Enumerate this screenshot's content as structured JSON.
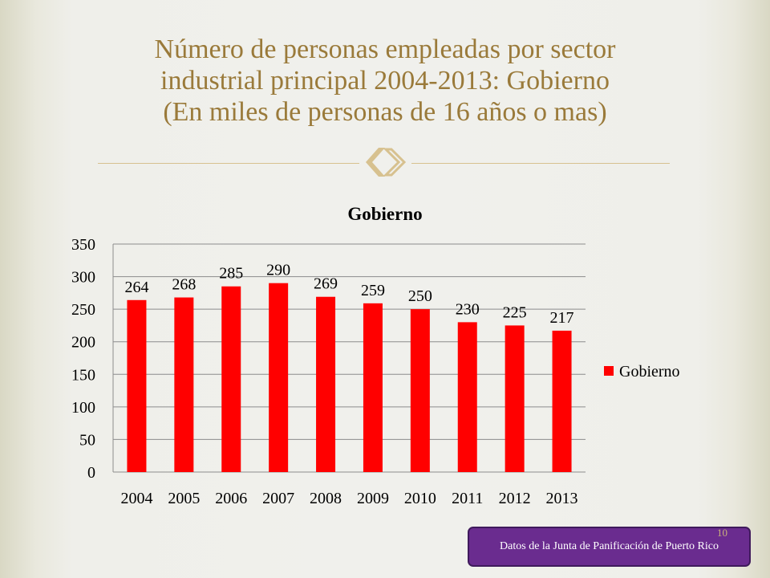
{
  "title_lines": [
    "Número de personas empleadas por sector",
    "industrial principal 2004-2013: Gobierno",
    "(En miles de personas de 16 años o mas)"
  ],
  "ornament_icon": "twin-arrow-ornament-icon",
  "chart_data": {
    "type": "bar",
    "title": "Gobierno",
    "categories": [
      "2004",
      "2005",
      "2006",
      "2007",
      "2008",
      "2009",
      "2010",
      "2011",
      "2012",
      "2013"
    ],
    "series": [
      {
        "name": "Gobierno",
        "values": [
          264,
          268,
          285,
          290,
          269,
          259,
          250,
          230,
          225,
          217
        ],
        "color": "#ff0000"
      }
    ],
    "ylim": [
      0,
      350
    ],
    "yticks": [
      0,
      50,
      100,
      150,
      200,
      250,
      300,
      350
    ],
    "xlabel": "",
    "ylabel": "",
    "grid": true,
    "legend": "right"
  },
  "source_note": "Datos de la Junta de Panificación de Puerto Rico",
  "page_number": "10",
  "colors": {
    "title": "#9a7a3a",
    "bar": "#ff0000",
    "source_box": "#6a2c8f"
  }
}
